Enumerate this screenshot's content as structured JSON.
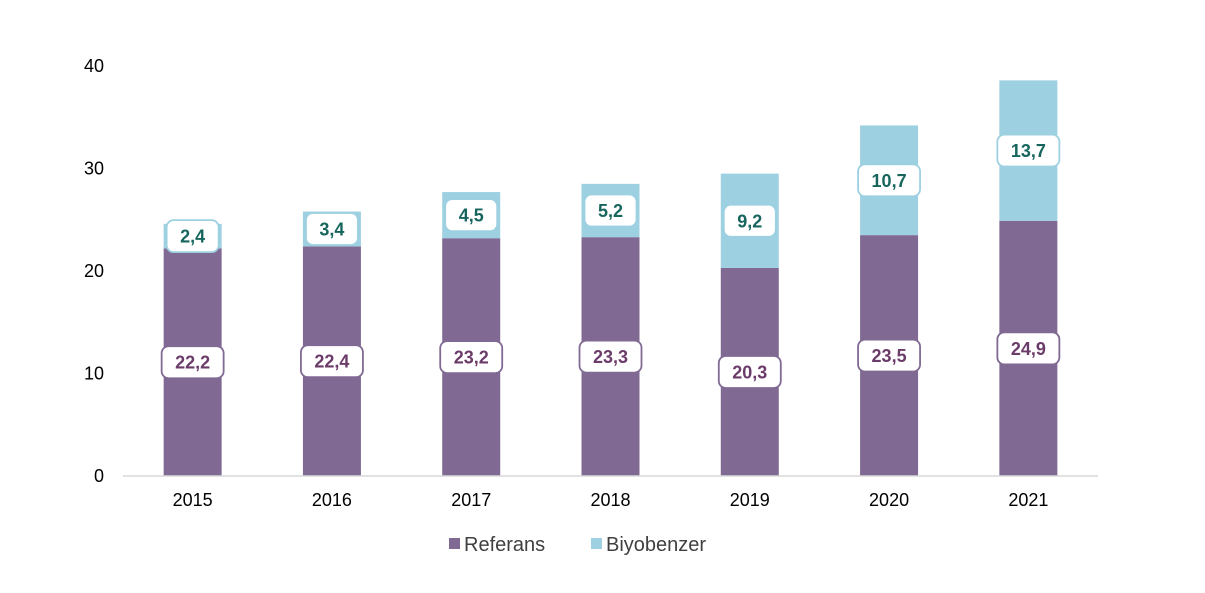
{
  "chart_data": {
    "type": "bar",
    "stacked": true,
    "categories": [
      "2015",
      "2016",
      "2017",
      "2018",
      "2019",
      "2020",
      "2021"
    ],
    "series": [
      {
        "name": "Referans",
        "values": [
          22.2,
          22.4,
          23.2,
          23.3,
          20.3,
          23.5,
          24.9
        ],
        "labels": [
          "22,2",
          "22,4",
          "23,2",
          "23,3",
          "20,3",
          "23,5",
          "24,9"
        ],
        "color": "#806A93",
        "label_color": "#6B3B69"
      },
      {
        "name": "Biyobenzer",
        "values": [
          2.4,
          3.4,
          4.5,
          5.2,
          9.2,
          10.7,
          13.7
        ],
        "labels": [
          "2,4",
          "3,4",
          "4,5",
          "5,2",
          "9,2",
          "10,7",
          "13,7"
        ],
        "color": "#9DD0E1",
        "label_color": "#17665E"
      }
    ],
    "y_ticks": [
      "0",
      "10",
      "20",
      "30",
      "40"
    ],
    "ylim": [
      0,
      40
    ],
    "grid": false,
    "legend_position": "bottom"
  }
}
